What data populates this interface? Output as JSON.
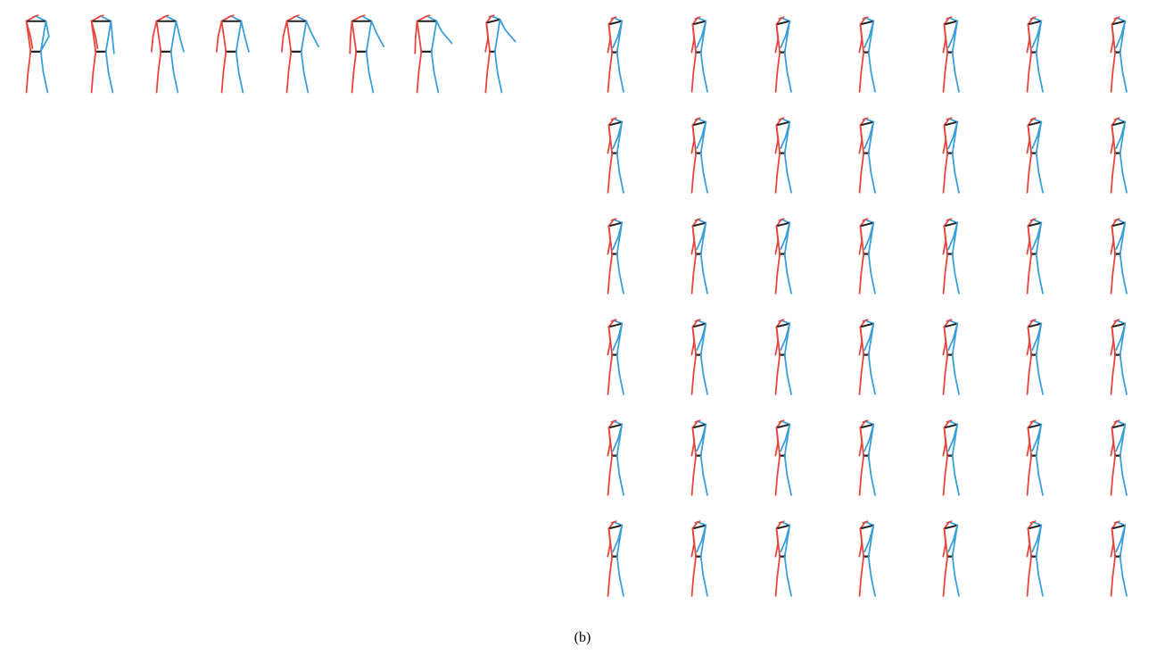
{
  "caption": "(b)",
  "colors": {
    "left_limbs": "#e8453c",
    "right_limbs": "#3a9fd9",
    "torso": "#222222",
    "background": "#ffffff"
  },
  "panels": {
    "history_sequence": {
      "figure_count": 8,
      "poses": [
        {
          "left_arm": "raised-out",
          "right_arm": "bent-in",
          "lean": "upright"
        },
        {
          "left_arm": "raised-out",
          "right_arm": "down",
          "lean": "upright"
        },
        {
          "left_arm": "out",
          "right_arm": "out",
          "lean": "upright"
        },
        {
          "left_arm": "out",
          "right_arm": "out",
          "lean": "upright"
        },
        {
          "left_arm": "out",
          "right_arm": "out-high",
          "lean": "upright"
        },
        {
          "left_arm": "down",
          "right_arm": "out-high",
          "lean": "slight-right"
        },
        {
          "left_arm": "down",
          "right_arm": "raised",
          "lean": "slight-right"
        },
        {
          "left_arm": "tucked",
          "right_arm": "raised",
          "lean": "turned"
        }
      ]
    },
    "prediction_grid": {
      "rows": 6,
      "columns": 7,
      "pose": {
        "left_arm": "tucked",
        "right_arm": "raised-out",
        "lean": "turned"
      }
    }
  }
}
